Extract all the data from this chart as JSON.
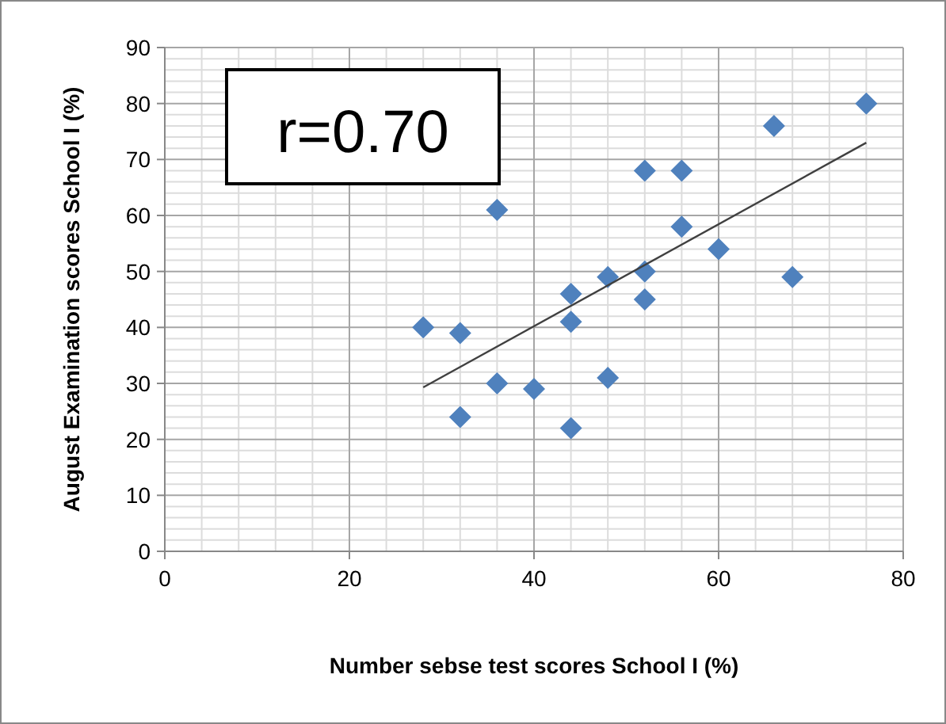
{
  "chart_data": {
    "type": "scatter",
    "xlabel": "Number sebse test scores School I (%)",
    "ylabel": "August Examination scores School I (%)",
    "annotations": [
      "r=0.70"
    ],
    "xlim": [
      0,
      80
    ],
    "xticks": [
      0,
      20,
      40,
      60,
      80
    ],
    "ylim": [
      0,
      90
    ],
    "yticks": [
      0,
      10,
      20,
      30,
      40,
      50,
      60,
      70,
      80,
      90
    ],
    "grid": true,
    "series": [
      {
        "marker": "diamond",
        "color": "#4f81bd",
        "x": [
          28,
          32,
          32,
          36,
          36,
          40,
          44,
          44,
          44,
          48,
          48,
          52,
          52,
          52,
          56,
          56,
          60,
          66,
          68,
          76
        ],
        "values": [
          40,
          39,
          24,
          61,
          30,
          29,
          46,
          41,
          22,
          49,
          31,
          68,
          50,
          45,
          68,
          58,
          54,
          76,
          49,
          80
        ]
      },
      {
        "type": "line",
        "marker": "none",
        "color": "#404040",
        "x": [
          28,
          76
        ],
        "values": [
          29.3,
          73
        ]
      }
    ]
  }
}
